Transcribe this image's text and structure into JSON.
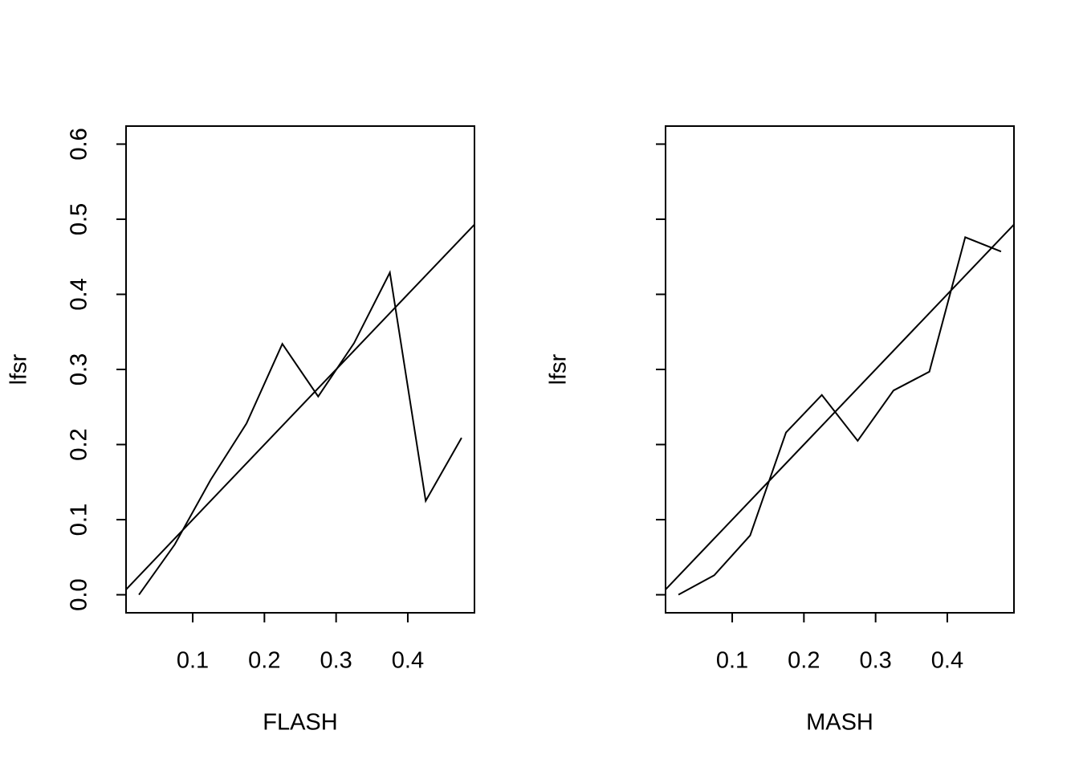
{
  "chart_data": [
    {
      "type": "line",
      "xlabel": "FLASH",
      "ylabel": "lfsr",
      "x": [
        0.025,
        0.075,
        0.125,
        0.175,
        0.225,
        0.275,
        0.325,
        0.375,
        0.425,
        0.475
      ],
      "values": [
        0.0,
        0.067,
        0.153,
        0.228,
        0.334,
        0.264,
        0.335,
        0.429,
        0.125,
        0.209
      ],
      "color": "#000000",
      "abline": {
        "intercept": 0,
        "slope": 1
      },
      "xlim": [
        0.007,
        0.493
      ],
      "ylim": [
        -0.024,
        0.624
      ],
      "xticks": [
        0.1,
        0.2,
        0.3,
        0.4
      ],
      "yticks": [
        {
          "value": 0,
          "label": "0.0"
        },
        0.1,
        0.2,
        0.3,
        0.4,
        0.5,
        0.6
      ]
    },
    {
      "type": "line",
      "xlabel": "MASH",
      "ylabel": "lfsr",
      "x": [
        0.025,
        0.075,
        0.125,
        0.175,
        0.225,
        0.275,
        0.325,
        0.375,
        0.425,
        0.475
      ],
      "values": [
        0.0,
        0.026,
        0.079,
        0.216,
        0.266,
        0.205,
        0.272,
        0.297,
        0.476,
        0.457
      ],
      "color": "#000000",
      "abline": {
        "intercept": 0,
        "slope": 1
      },
      "xlim": [
        0.007,
        0.493
      ],
      "ylim": [
        -0.024,
        0.624
      ],
      "xticks": [
        0.1,
        0.2,
        0.3,
        0.4
      ],
      "yticks": [
        {
          "value": 0,
          "label": "0.0"
        },
        0.1,
        0.2,
        0.3,
        0.4,
        0.5,
        0.6
      ]
    }
  ]
}
